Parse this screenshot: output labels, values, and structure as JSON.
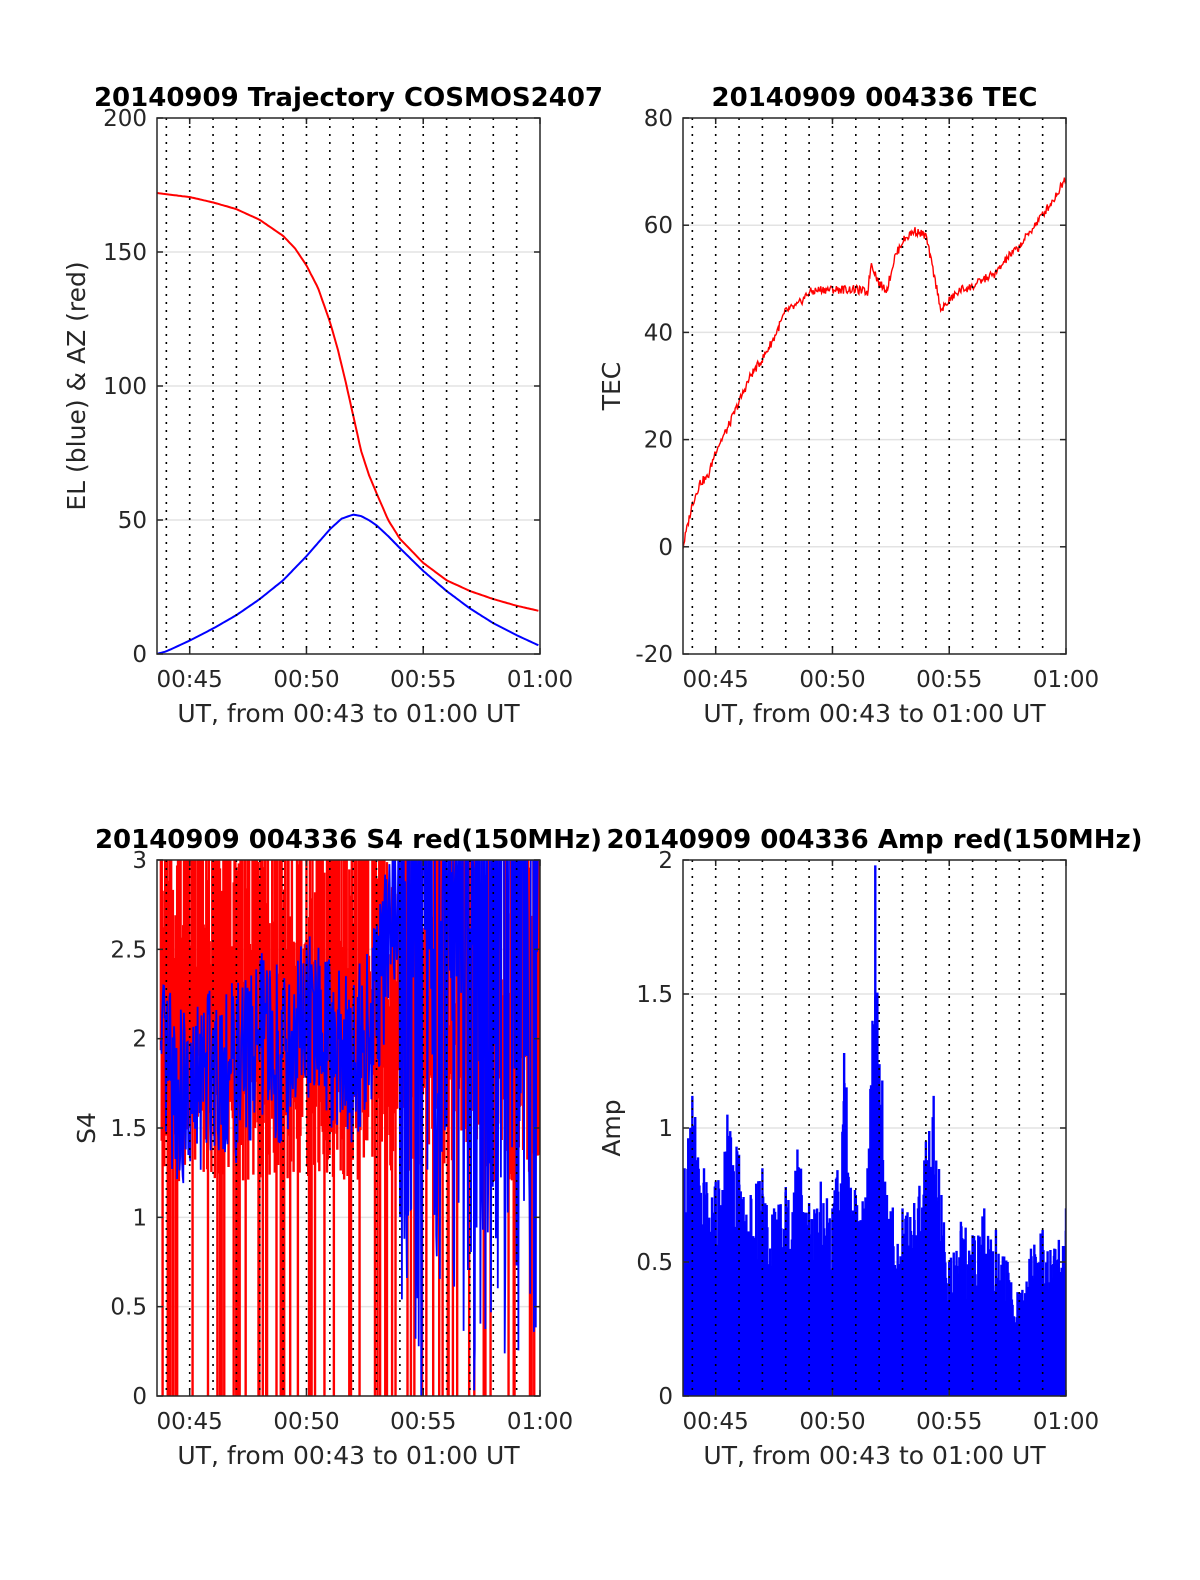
{
  "chart_data": [
    {
      "type": "line",
      "title": "20140909 Trajectory COSMOS2407",
      "xlabel": "UT, from 00:43 to 01:00 UT",
      "ylabel": "EL (blue) & AZ (red)",
      "x_ticks": [
        "00:45",
        "00:50",
        "00:55",
        "01:00"
      ],
      "y_ticks": [
        "0",
        "50",
        "100",
        "150",
        "200"
      ],
      "xlim": [
        "00:43:36",
        "01:00:00"
      ],
      "ylim": [
        0,
        200
      ],
      "grid": true,
      "series": [
        {
          "name": "AZ (red)",
          "color": "#ff0000",
          "x": [
            "00:43:36",
            "00:45:00",
            "00:46:00",
            "00:47:00",
            "00:48:00",
            "00:49:00",
            "00:49:30",
            "00:50:00",
            "00:50:30",
            "00:51:00",
            "00:51:20",
            "00:51:40",
            "00:52:00",
            "00:52:20",
            "00:52:40",
            "00:53:00",
            "00:53:30",
            "00:54:00",
            "00:55:00",
            "00:56:00",
            "00:57:00",
            "00:58:00",
            "00:59:00",
            "01:00:00"
          ],
          "y": [
            172,
            170.5,
            168.5,
            166,
            162,
            156,
            151.5,
            145,
            136.5,
            124,
            114,
            102,
            89,
            76,
            67,
            60,
            50,
            43,
            34,
            27.5,
            23.5,
            20.5,
            18,
            16
          ]
        },
        {
          "name": "EL (blue)",
          "color": "#0000ff",
          "x": [
            "00:43:36",
            "00:44:00",
            "00:45:00",
            "00:46:00",
            "00:47:00",
            "00:48:00",
            "00:49:00",
            "00:50:00",
            "00:50:30",
            "00:51:00",
            "00:51:30",
            "00:52:00",
            "00:52:20",
            "00:52:40",
            "00:53:00",
            "00:53:30",
            "00:54:00",
            "00:55:00",
            "00:56:00",
            "00:57:00",
            "00:58:00",
            "00:59:00",
            "01:00:00"
          ],
          "y": [
            0,
            1,
            5,
            9.5,
            14.5,
            20.5,
            27.5,
            36.5,
            41.5,
            46.5,
            50.5,
            52,
            51.5,
            50,
            48,
            44,
            39.5,
            31,
            23.5,
            17,
            11.5,
            7,
            3
          ]
        }
      ]
    },
    {
      "type": "line",
      "title": "20140909 004336 TEC",
      "xlabel": "UT, from 00:43 to 01:00 UT",
      "ylabel": "TEC",
      "x_ticks": [
        "00:45",
        "00:50",
        "00:55",
        "01:00"
      ],
      "y_ticks": [
        "-20",
        "0",
        "20",
        "40",
        "60",
        "80"
      ],
      "xlim": [
        "00:43:36",
        "01:00:00"
      ],
      "ylim": [
        -20,
        80
      ],
      "grid": true,
      "series": [
        {
          "name": "TEC",
          "color": "#ff0000",
          "x": [
            "00:43:36",
            "00:44:00",
            "00:44:20",
            "00:44:40",
            "00:45:00",
            "00:45:30",
            "00:46:00",
            "00:46:30",
            "00:47:00",
            "00:47:30",
            "00:48:00",
            "00:48:30",
            "00:49:00",
            "00:49:30",
            "00:50:00",
            "00:50:30",
            "00:51:00",
            "00:51:30",
            "00:51:40",
            "00:52:00",
            "00:52:20",
            "00:52:40",
            "00:53:00",
            "00:53:30",
            "00:54:00",
            "00:54:20",
            "00:54:40",
            "00:55:00",
            "00:55:30",
            "00:56:00",
            "00:56:30",
            "00:57:00",
            "00:57:30",
            "00:58:00",
            "00:58:30",
            "00:59:00",
            "00:59:30",
            "01:00:00"
          ],
          "y": [
            0,
            8,
            12,
            13,
            18,
            22,
            27,
            32,
            35,
            39,
            44,
            45,
            47.5,
            48,
            48,
            48,
            48,
            47.5,
            53,
            49,
            48,
            54,
            57,
            59,
            58,
            51,
            44,
            46,
            48,
            48.5,
            50,
            51,
            54,
            56,
            59,
            62,
            65,
            69
          ]
        }
      ]
    },
    {
      "type": "bar",
      "title": "20140909 004336 S4 red(150MHz)",
      "xlabel": "UT, from 00:43 to 01:00 UT",
      "ylabel": "S4",
      "x_ticks": [
        "00:45",
        "00:50",
        "00:55",
        "01:00"
      ],
      "y_ticks": [
        "0",
        "0.5",
        "1",
        "1.5",
        "2",
        "2.5",
        "3"
      ],
      "xlim": [
        "00:43:36",
        "01:00:00"
      ],
      "ylim": [
        0,
        3
      ],
      "grid": true,
      "series": [
        {
          "name": "S4 red (150MHz)",
          "color": "#ff0000",
          "x": [
            "00:44:00",
            "00:45:00",
            "00:46:00",
            "00:47:00",
            "00:48:00",
            "00:49:00",
            "00:50:00",
            "00:51:00",
            "00:52:00",
            "00:53:00",
            "00:54:00",
            "00:55:00",
            "00:56:00",
            "00:57:00",
            "00:58:00",
            "00:59:00",
            "01:00:00"
          ],
          "y": [
            3,
            3,
            3,
            3,
            3,
            3,
            3,
            3,
            3,
            3,
            3,
            3,
            3,
            3,
            3,
            3,
            3
          ]
        },
        {
          "name": "S4 blue",
          "color": "#0000ff",
          "x": [
            "00:44:00",
            "00:45:00",
            "00:46:00",
            "00:47:00",
            "00:48:00",
            "00:49:00",
            "00:50:00",
            "00:51:00",
            "00:52:00",
            "00:53:00",
            "00:54:00",
            "00:55:00",
            "00:56:00",
            "00:57:00",
            "00:58:00",
            "00:59:00",
            "01:00:00"
          ],
          "y": [
            1.8,
            1.6,
            1.9,
            1.8,
            2.0,
            1.9,
            2.1,
            2.0,
            1.9,
            2.2,
            3,
            3,
            3,
            3,
            3,
            3,
            3
          ]
        }
      ]
    },
    {
      "type": "bar",
      "title": "20140909 004336 Amp red(150MHz)",
      "xlabel": "UT, from 00:43 to 01:00 UT",
      "ylabel": "Amp",
      "x_ticks": [
        "00:45",
        "00:50",
        "00:55",
        "01:00"
      ],
      "y_ticks": [
        "0",
        "0.5",
        "1",
        "1.5",
        "2"
      ],
      "xlim": [
        "00:43:36",
        "01:00:00"
      ],
      "ylim": [
        0,
        2
      ],
      "grid": true,
      "series": [
        {
          "name": "Amp",
          "color": "#0000ff",
          "x": [
            "00:43:40",
            "00:44:00",
            "00:44:30",
            "00:45:00",
            "00:45:30",
            "00:46:00",
            "00:46:30",
            "00:47:00",
            "00:47:30",
            "00:48:00",
            "00:48:30",
            "00:49:00",
            "00:49:30",
            "00:50:00",
            "00:50:30",
            "00:51:00",
            "00:51:30",
            "00:51:50",
            "00:52:20",
            "00:53:00",
            "00:53:30",
            "00:54:00",
            "00:54:20",
            "00:54:40",
            "00:55:00",
            "00:55:30",
            "00:56:00",
            "00:56:30",
            "00:57:00",
            "00:57:30",
            "00:58:00",
            "00:58:30",
            "00:59:00",
            "00:59:30",
            "01:00:00"
          ],
          "y": [
            0.85,
            1.12,
            0.85,
            0.8,
            1.05,
            0.9,
            0.75,
            0.85,
            0.7,
            0.78,
            0.92,
            0.72,
            0.8,
            0.7,
            1.28,
            0.75,
            0.85,
            1.98,
            0.75,
            0.7,
            0.72,
            0.95,
            1.12,
            0.75,
            0.5,
            0.65,
            0.6,
            0.7,
            0.62,
            0.5,
            0.38,
            0.55,
            0.62,
            0.55,
            0.7
          ]
        }
      ]
    }
  ]
}
